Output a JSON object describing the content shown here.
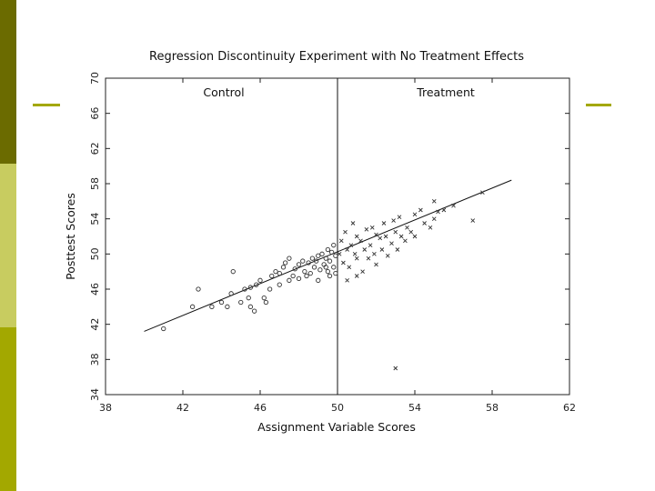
{
  "slide": {
    "sidebar_colors": [
      "#6b6b00",
      "#c8cc60",
      "#a3a800"
    ],
    "accent_color": "#a3a800"
  },
  "chart_data": {
    "type": "scatter",
    "title": "Regression Discontinuity Experiment with No Treatment Effects",
    "xlabel": "Assignment Variable Scores",
    "ylabel": "Posttest Scores",
    "xlim": [
      38,
      62
    ],
    "ylim": [
      34,
      70
    ],
    "xticks": [
      38,
      42,
      46,
      50,
      54,
      58,
      62
    ],
    "yticks": [
      34,
      38,
      42,
      46,
      50,
      54,
      58,
      62,
      66,
      70
    ],
    "cutoff": 50,
    "region_labels": {
      "left": "Control",
      "right": "Treatment"
    },
    "regression_line": {
      "x": [
        40,
        59
      ],
      "y": [
        41.2,
        58.4
      ]
    },
    "grid": false,
    "series": [
      {
        "marker": "o",
        "points": [
          [
            41,
            41.5
          ],
          [
            42.5,
            44
          ],
          [
            42.8,
            46
          ],
          [
            43.5,
            44
          ],
          [
            44,
            44.5
          ],
          [
            44.3,
            44
          ],
          [
            44.5,
            45.5
          ],
          [
            44.6,
            48
          ],
          [
            45,
            44.5
          ],
          [
            45.2,
            46
          ],
          [
            45.4,
            45
          ],
          [
            45.5,
            44
          ],
          [
            45.5,
            46.2
          ],
          [
            45.7,
            43.5
          ],
          [
            45.8,
            46.5
          ],
          [
            46,
            47
          ],
          [
            46.2,
            45
          ],
          [
            46.3,
            44.5
          ],
          [
            46.5,
            46
          ],
          [
            46.6,
            47.5
          ],
          [
            46.8,
            48
          ],
          [
            47,
            47.8
          ],
          [
            47,
            46.5
          ],
          [
            47.2,
            48.5
          ],
          [
            47.3,
            49
          ],
          [
            47.5,
            47
          ],
          [
            47.5,
            49.5
          ],
          [
            47.7,
            47.5
          ],
          [
            47.8,
            48.3
          ],
          [
            48,
            48.8
          ],
          [
            48,
            47.2
          ],
          [
            48.2,
            49.2
          ],
          [
            48.3,
            48
          ],
          [
            48.5,
            49
          ],
          [
            48.6,
            47.8
          ],
          [
            48.7,
            49.5
          ],
          [
            48.8,
            48.5
          ],
          [
            48.9,
            49.2
          ],
          [
            49,
            47
          ],
          [
            49,
            49.8
          ],
          [
            49.1,
            48.2
          ],
          [
            49.2,
            50
          ],
          [
            49.3,
            48.8
          ],
          [
            49.4,
            49.5
          ],
          [
            49.5,
            50.5
          ],
          [
            49.5,
            48
          ],
          [
            49.6,
            49.2
          ],
          [
            49.7,
            50.2
          ],
          [
            49.8,
            48.5
          ],
          [
            49.8,
            51
          ],
          [
            49.9,
            49.8
          ],
          [
            49.9,
            47.8
          ],
          [
            49.6,
            47.5
          ],
          [
            49.4,
            48.5
          ],
          [
            48.4,
            47.5
          ]
        ]
      },
      {
        "marker": "x",
        "points": [
          [
            50.1,
            50
          ],
          [
            50.2,
            51.5
          ],
          [
            50.3,
            49
          ],
          [
            50.4,
            52.5
          ],
          [
            50.5,
            50.5
          ],
          [
            50.6,
            48.5
          ],
          [
            50.7,
            51
          ],
          [
            50.8,
            53.5
          ],
          [
            50.9,
            50
          ],
          [
            51,
            52
          ],
          [
            51,
            49.5
          ],
          [
            51.2,
            51.5
          ],
          [
            51.3,
            48
          ],
          [
            51.4,
            50.5
          ],
          [
            51.5,
            52.8
          ],
          [
            51.6,
            49.5
          ],
          [
            51.7,
            51
          ],
          [
            51.8,
            53
          ],
          [
            51.9,
            50
          ],
          [
            52,
            52.2
          ],
          [
            52,
            48.8
          ],
          [
            52.2,
            51.8
          ],
          [
            52.3,
            50.5
          ],
          [
            52.4,
            53.5
          ],
          [
            52.5,
            52
          ],
          [
            52.6,
            49.8
          ],
          [
            52.8,
            51.2
          ],
          [
            52.9,
            53.8
          ],
          [
            53,
            52.5
          ],
          [
            53.1,
            50.5
          ],
          [
            53.2,
            54.2
          ],
          [
            53.3,
            52
          ],
          [
            53.5,
            51.5
          ],
          [
            53.6,
            53
          ],
          [
            53.8,
            52.5
          ],
          [
            54,
            54.5
          ],
          [
            54,
            52
          ],
          [
            54.3,
            55
          ],
          [
            54.5,
            53.5
          ],
          [
            54.8,
            53
          ],
          [
            55,
            56
          ],
          [
            55,
            54
          ],
          [
            55.2,
            54.8
          ],
          [
            55.5,
            55
          ],
          [
            56,
            55.5
          ],
          [
            57,
            53.8
          ],
          [
            57.5,
            57
          ],
          [
            53,
            37
          ],
          [
            51,
            47.5
          ],
          [
            50.5,
            47
          ]
        ]
      }
    ]
  }
}
